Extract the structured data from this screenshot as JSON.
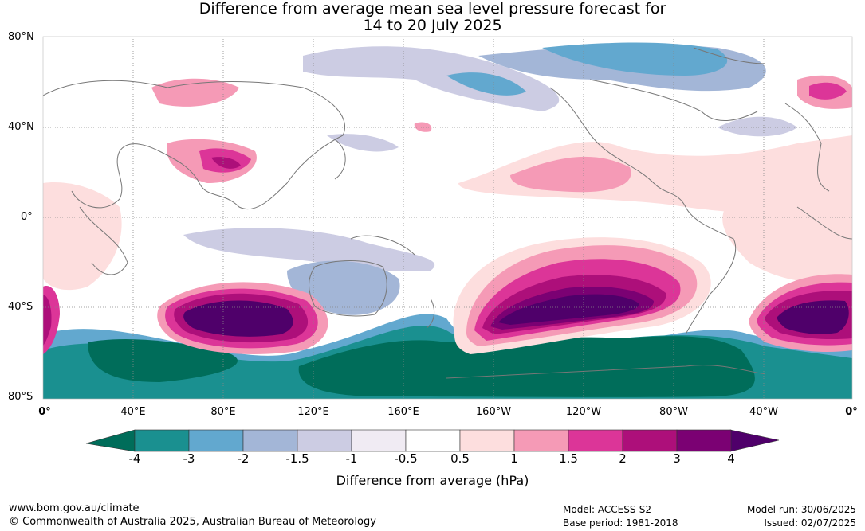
{
  "title": {
    "line1": "Difference from average mean sea level pressure forecast for",
    "line2": "14 to 20 July 2025"
  },
  "map": {
    "latitude_labels": [
      "80°N",
      "40°N",
      "0°",
      "40°S",
      "80°S"
    ],
    "longitude_labels": [
      "0°",
      "40°E",
      "80°E",
      "120°E",
      "160°E",
      "160°W",
      "120°W",
      "80°W",
      "40°W",
      "0°"
    ]
  },
  "colorbar": {
    "label": "Difference from average (hPa)",
    "ticks": [
      "-4",
      "-3",
      "-2",
      "-1.5",
      "-1",
      "-0.5",
      "0.5",
      "1",
      "1.5",
      "2",
      "3",
      "4"
    ],
    "colors": [
      "#1a9090",
      "#62a8cf",
      "#a3b6d7",
      "#cccce3",
      "#f0ebf3",
      "#ffffff",
      "#fddede",
      "#f59ab6",
      "#dc3598",
      "#ad0f7a",
      "#7b0173",
      "#4f006a"
    ],
    "low_extend_color": "#006d5a",
    "high_extend_color": "#4f006a"
  },
  "footer": {
    "website": "www.bom.gov.au/climate",
    "copyright": "© Commonwealth of Australia 2025, Australian Bureau of Meteorology",
    "model": "Model: ACCESS-S2",
    "base_period": "Base period: 1981-2018",
    "model_run": "Model run: 30/06/2025",
    "issued": "Issued: 02/07/2025"
  }
}
